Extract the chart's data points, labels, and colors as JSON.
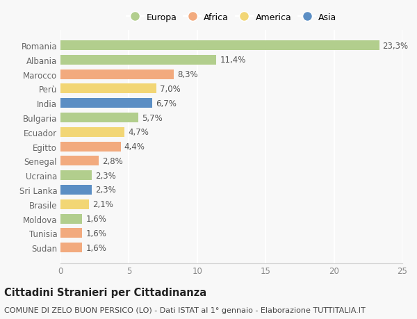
{
  "categories": [
    "Sudan",
    "Tunisia",
    "Moldova",
    "Brasile",
    "Sri Lanka",
    "Ucraina",
    "Senegal",
    "Egitto",
    "Ecuador",
    "Bulgaria",
    "India",
    "Perù",
    "Marocco",
    "Albania",
    "Romania"
  ],
  "values": [
    1.6,
    1.6,
    1.6,
    2.1,
    2.3,
    2.3,
    2.8,
    4.4,
    4.7,
    5.7,
    6.7,
    7.0,
    8.3,
    11.4,
    23.3
  ],
  "labels": [
    "1,6%",
    "1,6%",
    "1,6%",
    "2,1%",
    "2,3%",
    "2,3%",
    "2,8%",
    "4,4%",
    "4,7%",
    "5,7%",
    "6,7%",
    "7,0%",
    "8,3%",
    "11,4%",
    "23,3%"
  ],
  "continents": [
    "Africa",
    "Africa",
    "Europa",
    "America",
    "Asia",
    "Europa",
    "Africa",
    "Africa",
    "America",
    "Europa",
    "Asia",
    "America",
    "Africa",
    "Europa",
    "Europa"
  ],
  "colors": {
    "Europa": "#b2ce8d",
    "Africa": "#f2aa7e",
    "America": "#f2d675",
    "Asia": "#5b8ec4"
  },
  "legend_labels": [
    "Europa",
    "Africa",
    "America",
    "Asia"
  ],
  "legend_colors": [
    "#b2ce8d",
    "#f2aa7e",
    "#f2d675",
    "#5b8ec4"
  ],
  "title": "Cittadini Stranieri per Cittadinanza",
  "subtitle": "COMUNE DI ZELO BUON PERSICO (LO) - Dati ISTAT al 1° gennaio - Elaborazione TUTTITALIA.IT",
  "xlim": [
    0,
    25
  ],
  "xticks": [
    0,
    5,
    10,
    15,
    20,
    25
  ],
  "background_color": "#f8f8f8",
  "grid_color": "#ffffff",
  "label_fontsize": 8.5,
  "title_fontsize": 10.5,
  "subtitle_fontsize": 8
}
